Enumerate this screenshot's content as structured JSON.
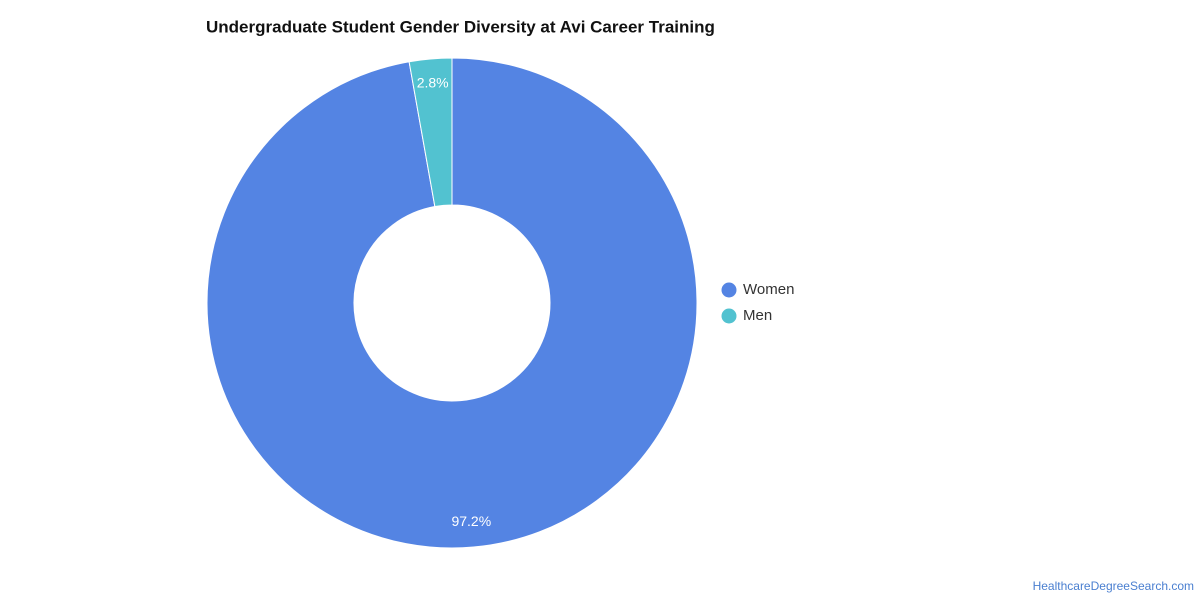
{
  "chart_data": {
    "type": "donut",
    "title": "Undergraduate Student Gender Diversity at Avi Career Training",
    "categories": [
      "Women",
      "Men"
    ],
    "series": [
      {
        "values": [
          97.2,
          2.8
        ],
        "value_labels": [
          "97.2%",
          "2.8%"
        ],
        "colors": [
          "#5484e3",
          "#52c2d0"
        ]
      }
    ],
    "legend": "right"
  },
  "source": "HealthcareDegreeSearch.com"
}
